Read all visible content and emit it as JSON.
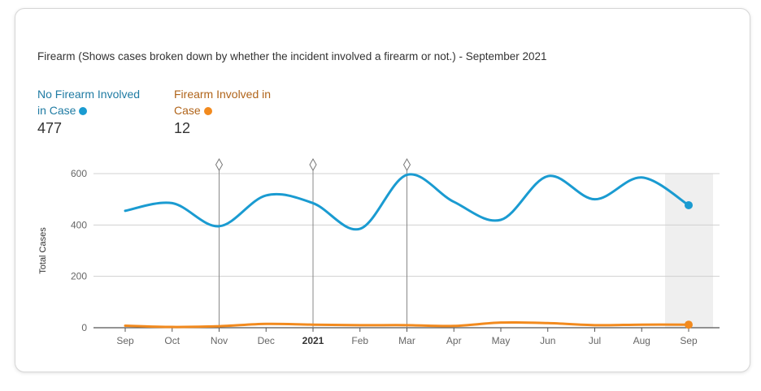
{
  "title": "Firearm (Shows cases broken down by whether the incident involved a firearm or not.) - September 2021",
  "legend": [
    {
      "label": "No Firearm Involved in Case",
      "value": "477",
      "color": "#1a9bd1",
      "text_color": "#1f7ba3"
    },
    {
      "label": "Firearm Involved in Case",
      "value": "12",
      "color": "#f28a1e",
      "text_color": "#b0641a"
    }
  ],
  "chart_data": {
    "type": "line",
    "title": "Firearm (Shows cases broken down by whether the incident involved a firearm or not.) - September 2021",
    "ylabel": "Total Cases",
    "xlabel": "",
    "categories": [
      "Sep",
      "Oct",
      "Nov",
      "Dec",
      "2021",
      "Feb",
      "Mar",
      "Apr",
      "May",
      "Jun",
      "Jul",
      "Aug",
      "Sep"
    ],
    "ylim": [
      0,
      600
    ],
    "yticks": [
      0,
      200,
      400,
      600
    ],
    "grid": true,
    "markers_at": [
      "Nov",
      "2021",
      "Mar"
    ],
    "highlighted": "Sep",
    "series": [
      {
        "name": "No Firearm Involved in Case",
        "color": "#1a9bd1",
        "values": [
          455,
          485,
          395,
          515,
          485,
          385,
          595,
          490,
          420,
          590,
          500,
          585,
          477
        ]
      },
      {
        "name": "Firearm Involved in Case",
        "color": "#f28a1e",
        "values": [
          8,
          3,
          6,
          15,
          12,
          10,
          10,
          7,
          20,
          18,
          10,
          12,
          12
        ]
      }
    ]
  }
}
